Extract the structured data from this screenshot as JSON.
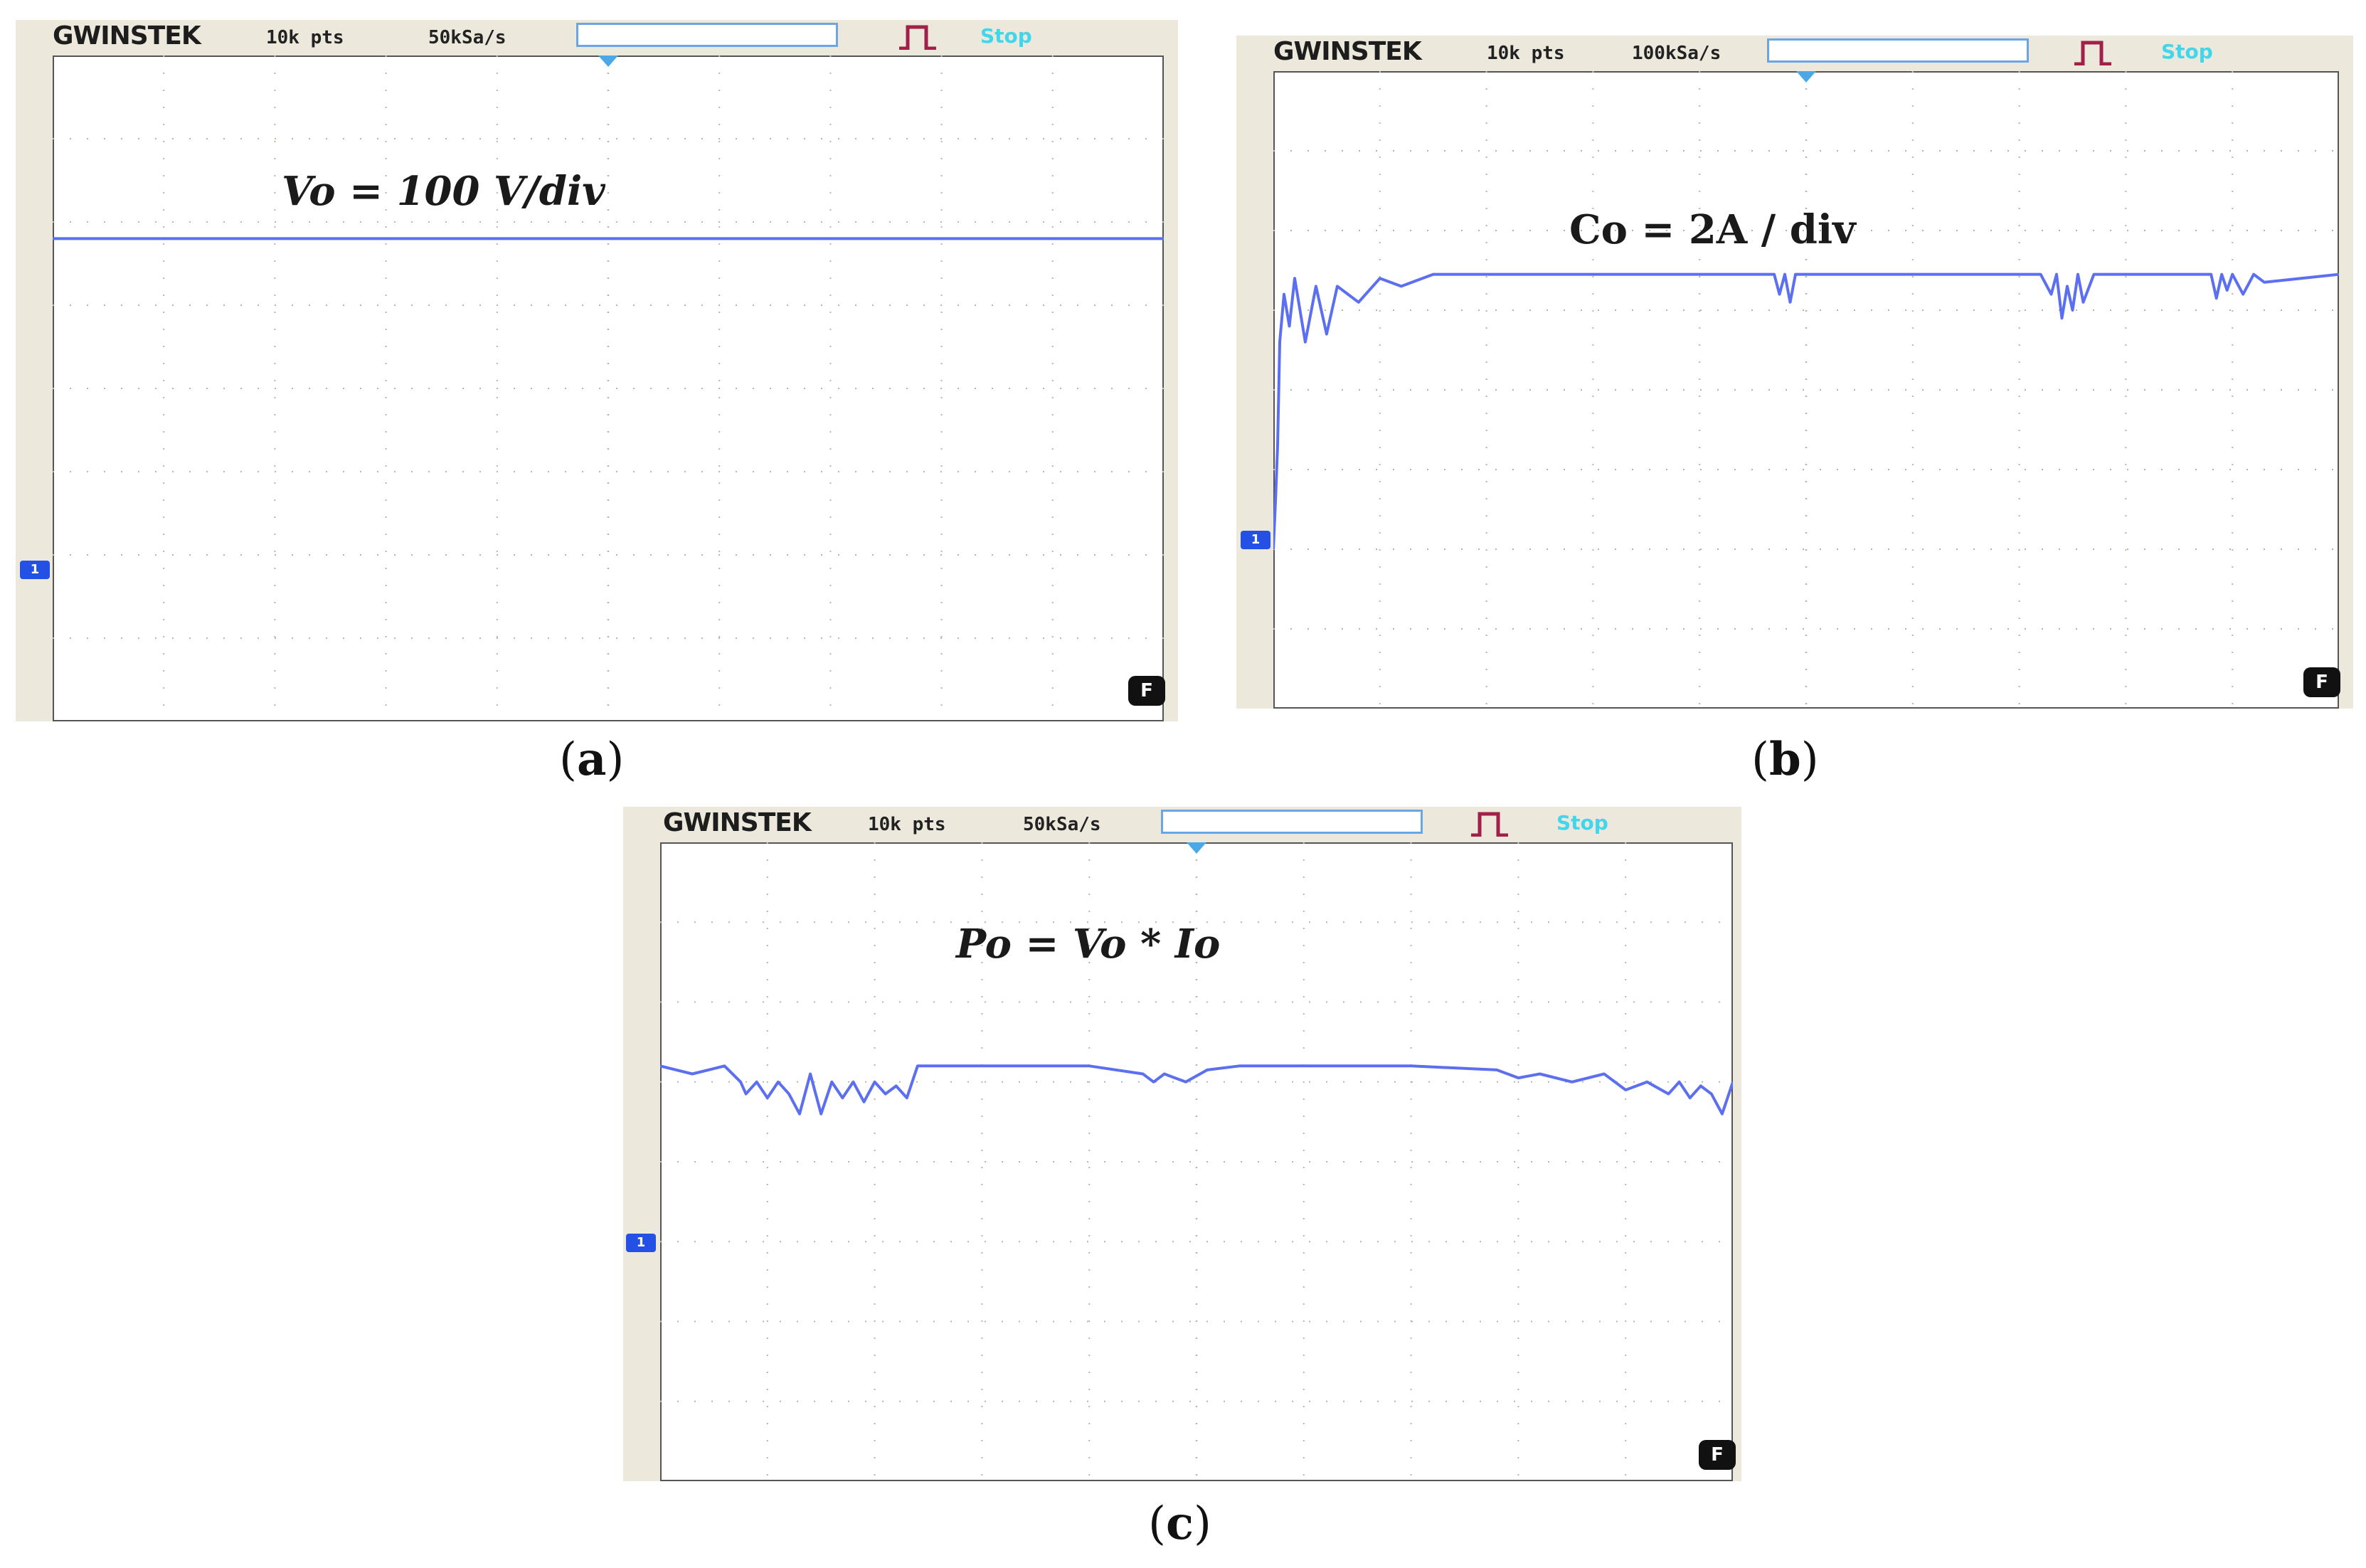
{
  "header": {
    "brand": "GWINSTEK",
    "stop_label": "Stop",
    "channel_marker": "1",
    "mode_badge": "F"
  },
  "colors": {
    "trace": "#5b6ff0",
    "grid": "#b9b6a8",
    "frame": "#555555",
    "background": "#ffffff",
    "trigger": "#4aa8e8",
    "trigger_icon": "#a0204a",
    "stop": "#41d6ec"
  },
  "icons": {
    "trigger": "pulse-edge-icon",
    "memory": "memory-bar-icon",
    "channel": "channel-1-marker-icon",
    "mode": "f-badge-icon"
  },
  "chart_data": [
    {
      "type": "line",
      "panel": "a",
      "caption_open": "(",
      "caption_letter": "a",
      "caption_close": ")",
      "points_label": "10k pts",
      "rate_label": "50kSa/s",
      "annotation": "Vo = 100 V/div",
      "divisions": {
        "x": 10,
        "y": 8
      },
      "ylim": [
        -2,
        6
      ],
      "xlim": [
        0,
        10
      ],
      "baseline_div": 0,
      "series": [
        {
          "x": [
            0,
            10
          ],
          "y": [
            3.8,
            3.8
          ]
        }
      ]
    },
    {
      "type": "line",
      "panel": "b",
      "caption_open": "(",
      "caption_letter": "b",
      "caption_close": ")",
      "points_label": "10k pts",
      "rate_label": "100kSa/s",
      "annotation": "Co = 2A / div",
      "divisions": {
        "x": 10,
        "y": 8
      },
      "ylim": [
        -2,
        6
      ],
      "xlim": [
        0,
        10
      ],
      "baseline_div": 0,
      "series": [
        {
          "x": [
            0,
            0.02,
            0.04,
            0.06,
            0.1,
            0.15,
            0.2,
            0.3,
            0.4,
            0.5,
            0.6,
            0.8,
            1.0,
            1.2,
            1.5,
            2.0,
            3.0,
            4.0,
            4.7,
            4.75,
            4.8,
            4.85,
            4.9,
            5.0,
            6.0,
            7.2,
            7.3,
            7.35,
            7.4,
            7.45,
            7.5,
            7.55,
            7.6,
            7.7,
            7.8,
            8.5,
            8.8,
            8.85,
            8.9,
            8.95,
            9.0,
            9.1,
            9.2,
            9.3,
            10.0
          ],
          "y": [
            0.0,
            0.6,
            1.3,
            2.6,
            3.2,
            2.8,
            3.4,
            2.6,
            3.3,
            2.7,
            3.3,
            3.1,
            3.4,
            3.3,
            3.45,
            3.45,
            3.45,
            3.45,
            3.45,
            3.2,
            3.45,
            3.1,
            3.45,
            3.45,
            3.45,
            3.45,
            3.2,
            3.45,
            2.9,
            3.3,
            3.0,
            3.45,
            3.1,
            3.45,
            3.45,
            3.45,
            3.45,
            3.15,
            3.45,
            3.25,
            3.45,
            3.2,
            3.45,
            3.35,
            3.45
          ]
        }
      ]
    },
    {
      "type": "line",
      "panel": "c",
      "caption_open": "(",
      "caption_letter": "c",
      "caption_close": ")",
      "points_label": "10k pts",
      "rate_label": "50kSa/s",
      "annotation": "Po = Vo * Io",
      "divisions": {
        "x": 10,
        "y": 8
      },
      "ylim": [
        -2,
        6
      ],
      "xlim": [
        0,
        10
      ],
      "baseline_div": 0,
      "series": [
        {
          "x": [
            0,
            0.3,
            0.6,
            0.75,
            0.8,
            0.9,
            1.0,
            1.1,
            1.2,
            1.3,
            1.4,
            1.5,
            1.6,
            1.7,
            1.8,
            1.9,
            2.0,
            2.1,
            2.2,
            2.3,
            2.4,
            2.6,
            3.0,
            3.5,
            4.0,
            4.5,
            4.6,
            4.7,
            4.9,
            5.1,
            5.4,
            5.6,
            6.0,
            7.0,
            7.8,
            8.0,
            8.2,
            8.5,
            8.8,
            9.0,
            9.2,
            9.4,
            9.5,
            9.6,
            9.7,
            9.8,
            9.9,
            10.0
          ],
          "y": [
            3.2,
            3.1,
            3.2,
            3.0,
            2.85,
            3.0,
            2.8,
            3.0,
            2.85,
            2.6,
            3.1,
            2.6,
            3.0,
            2.8,
            3.0,
            2.75,
            3.0,
            2.85,
            2.95,
            2.8,
            3.2,
            3.2,
            3.2,
            3.2,
            3.2,
            3.1,
            3.0,
            3.1,
            3.0,
            3.15,
            3.2,
            3.2,
            3.2,
            3.2,
            3.15,
            3.05,
            3.1,
            3.0,
            3.1,
            2.9,
            3.0,
            2.85,
            3.0,
            2.8,
            2.95,
            2.85,
            2.6,
            3.0
          ]
        }
      ]
    }
  ]
}
